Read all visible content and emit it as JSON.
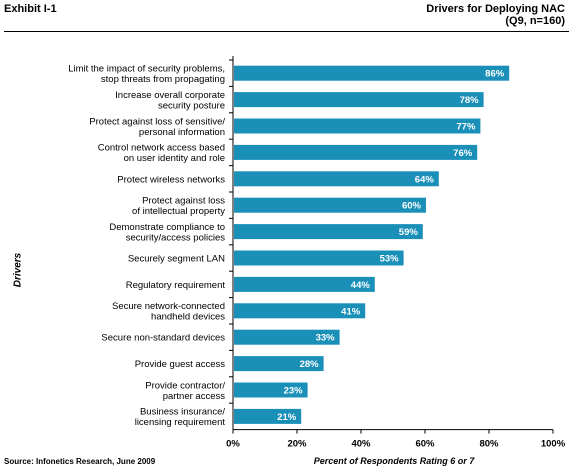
{
  "exhibit": "Exhibit I-1",
  "title": "Drivers for Deploying NAC",
  "subtitle": "(Q9, n=160)",
  "source": "Source: Infonetics Research, June 2009",
  "colors": {
    "bar": "#1a8fb8"
  },
  "chart_data": {
    "type": "bar",
    "orientation": "horizontal",
    "title": "Drivers for Deploying NAC",
    "subtitle": "(Q9, n=160)",
    "xlabel": "Percent of Respondents Rating 6 or 7",
    "ylabel": "Drivers",
    "xlim": [
      0,
      100
    ],
    "xticks": [
      "0%",
      "20%",
      "40%",
      "60%",
      "80%",
      "100%"
    ],
    "grid": false,
    "categories": [
      [
        "Limit the impact of security problems,",
        "stop threats from propagating"
      ],
      [
        "Increase overall corporate",
        "security posture"
      ],
      [
        "Protect against loss of sensitive/",
        "personal information"
      ],
      [
        "Control network access based",
        "on user identity and role"
      ],
      [
        "Protect wireless networks"
      ],
      [
        "Protect against loss",
        "of intellectual property"
      ],
      [
        "Demonstrate compliance to",
        "security/access policies"
      ],
      [
        "Securely segment LAN"
      ],
      [
        "Regulatory requirement"
      ],
      [
        "Secure network-connected",
        "handheld devices"
      ],
      [
        "Secure non-standard devices"
      ],
      [
        "Provide guest access"
      ],
      [
        "Provide contractor/",
        "partner access"
      ],
      [
        "Business insurance/",
        "licensing requirement"
      ]
    ],
    "values": [
      86,
      78,
      77,
      76,
      64,
      60,
      59,
      53,
      44,
      41,
      33,
      28,
      23,
      21
    ],
    "value_labels": [
      "86%",
      "78%",
      "77%",
      "76%",
      "64%",
      "60%",
      "59%",
      "53%",
      "44%",
      "41%",
      "33%",
      "28%",
      "23%",
      "21%"
    ]
  }
}
